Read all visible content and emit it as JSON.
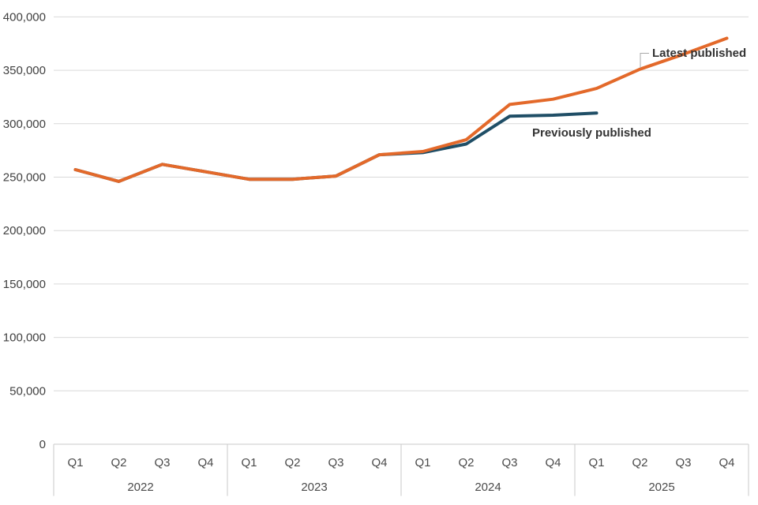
{
  "chart_data": {
    "type": "line",
    "title": "",
    "x_axis": {
      "years": [
        "2022",
        "2023",
        "2024",
        "2025"
      ],
      "quarters_per_year": [
        "Q1",
        "Q2",
        "Q3",
        "Q4"
      ]
    },
    "y_axis": {
      "min": 0,
      "max": 400000,
      "tick_interval": 50000,
      "tick_labels": [
        "0",
        "50,000",
        "100,000",
        "150,000",
        "200,000",
        "250,000",
        "300,000",
        "350,000",
        "400,000"
      ]
    },
    "grid": "horizontal",
    "legend_position": "annotations-on-chart",
    "colors": {
      "previously_published": "#1f4e66",
      "latest_published": "#e3692a",
      "gridline": "#d9d9d9",
      "axis": "#c8c8c8",
      "tick_text": "#404040",
      "annotation_text": "#333333",
      "leader_line": "#a8a8a8"
    },
    "series": [
      {
        "name": "Previously published",
        "color": "#1f4e66",
        "values": [
          257000,
          246000,
          262000,
          255000,
          248000,
          248000,
          251000,
          271000,
          273000,
          281000,
          307000,
          308000,
          310000,
          null,
          null,
          null
        ]
      },
      {
        "name": "Latest published",
        "color": "#e3692a",
        "values": [
          257000,
          246000,
          262000,
          255000,
          248000,
          248000,
          251000,
          271000,
          274000,
          285000,
          318000,
          323000,
          333000,
          351000,
          365000,
          380000
        ]
      }
    ],
    "annotations": [
      {
        "text": "Latest published",
        "attached_series": "Latest published",
        "anchor_quarter": "Q2 2025"
      },
      {
        "text": "Previously published",
        "attached_series": "Previously published"
      }
    ]
  }
}
